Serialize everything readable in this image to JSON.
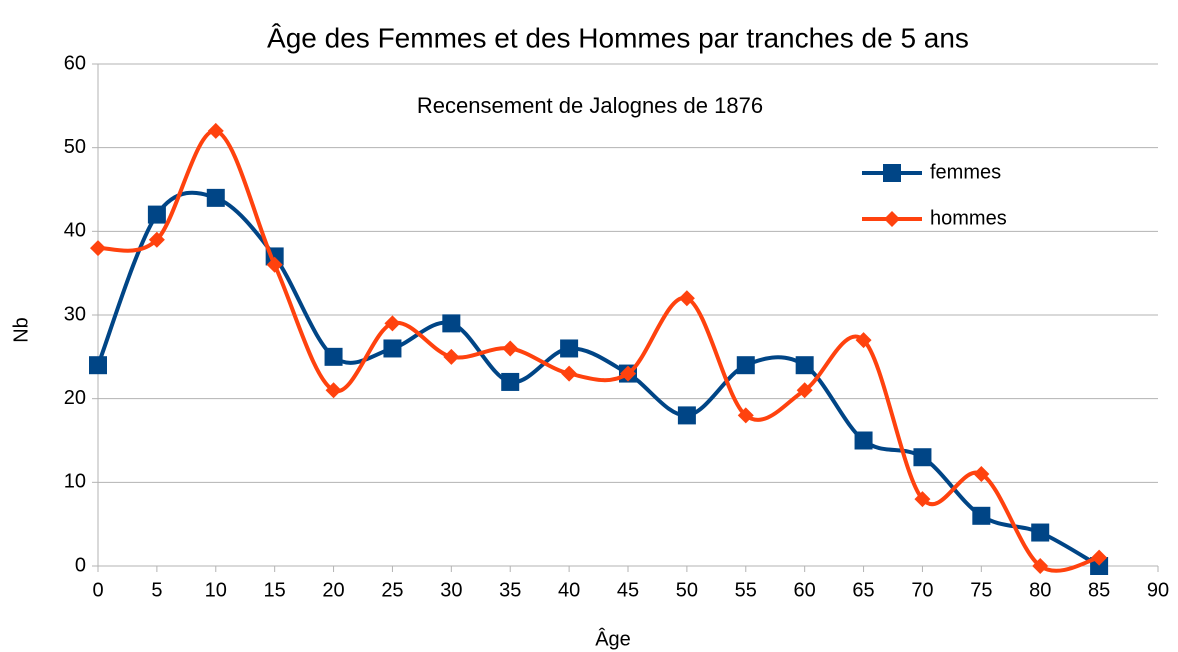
{
  "chart_data": {
    "type": "line",
    "title": "Âge des Femmes et des Hommes par tranches de 5 ans",
    "annotation": "Recensement de Jalognes de 1876",
    "xlabel": "Âge",
    "ylabel": "Nb",
    "x": [
      0,
      5,
      10,
      15,
      20,
      25,
      30,
      35,
      40,
      45,
      50,
      55,
      60,
      65,
      70,
      75,
      80,
      85
    ],
    "series": [
      {
        "name": "femmes",
        "color": "#004586",
        "marker": "square",
        "values": [
          24,
          42,
          44,
          37,
          25,
          26,
          29,
          22,
          26,
          23,
          18,
          24,
          24,
          15,
          13,
          6,
          4,
          0
        ]
      },
      {
        "name": "hommes",
        "color": "#ff420e",
        "marker": "diamond",
        "values": [
          38,
          39,
          52,
          36,
          21,
          29,
          25,
          26,
          23,
          23,
          32,
          18,
          21,
          27,
          8,
          11,
          0,
          1
        ]
      }
    ],
    "xlim": [
      0,
      90
    ],
    "xticks": [
      0,
      5,
      10,
      15,
      20,
      25,
      30,
      35,
      40,
      45,
      50,
      55,
      60,
      65,
      70,
      75,
      80,
      85,
      90
    ],
    "ylim": [
      0,
      60
    ],
    "yticks": [
      0,
      10,
      20,
      30,
      40,
      50,
      60
    ],
    "grid": true,
    "smooth": true,
    "legend": "upper right"
  }
}
